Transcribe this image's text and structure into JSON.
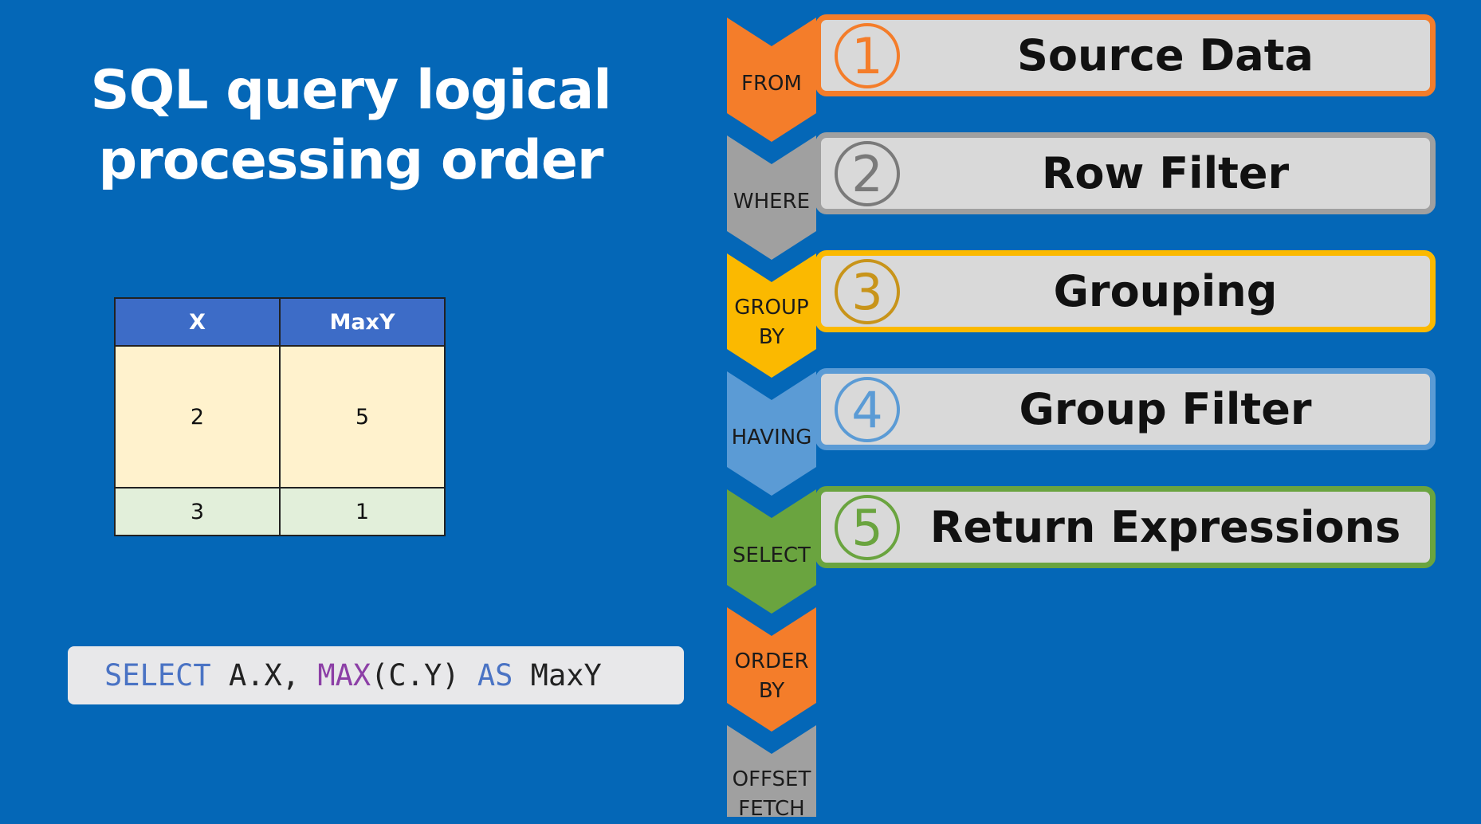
{
  "title": {
    "line1": "SQL query logical",
    "line2": "processing order"
  },
  "result_table": {
    "headers": [
      "X",
      "MaxY"
    ],
    "rows": [
      [
        "2",
        "5"
      ],
      [
        "3",
        "1"
      ]
    ]
  },
  "sql": {
    "select_kw": "SELECT",
    "col1": "A.X,",
    "max_fn": "MAX",
    "max_arg": "(C.Y)",
    "as_kw": "AS",
    "alias": "MaxY"
  },
  "clauses": [
    {
      "line1": "FROM",
      "line2": "",
      "color": "#f47d2a"
    },
    {
      "line1": "WHERE",
      "line2": "",
      "color": "#a0a0a0"
    },
    {
      "line1": "GROUP",
      "line2": "BY",
      "color": "#fbb900"
    },
    {
      "line1": "HAVING",
      "line2": "",
      "color": "#5b9bd5"
    },
    {
      "line1": "SELECT",
      "line2": "",
      "color": "#6aa43f"
    },
    {
      "line1": "ORDER",
      "line2": "BY",
      "color": "#f47d2a"
    },
    {
      "line1": "OFFSET",
      "line2": "FETCH",
      "color": "#a0a0a0"
    }
  ],
  "steps": [
    {
      "number": "1",
      "label": "Source Data",
      "color": "#f47d2a",
      "number_color": "#f47d2a"
    },
    {
      "number": "2",
      "label": "Row Filter",
      "color": "#a0a0a0",
      "number_color": "#7a7a7a"
    },
    {
      "number": "3",
      "label": "Grouping",
      "color": "#fbb900",
      "number_color": "#c8941a"
    },
    {
      "number": "4",
      "label": "Group Filter",
      "color": "#5b9bd5",
      "number_color": "#5b9bd5"
    },
    {
      "number": "5",
      "label": "Return Expressions",
      "color": "#6aa43f",
      "number_color": "#6aa43f"
    }
  ]
}
